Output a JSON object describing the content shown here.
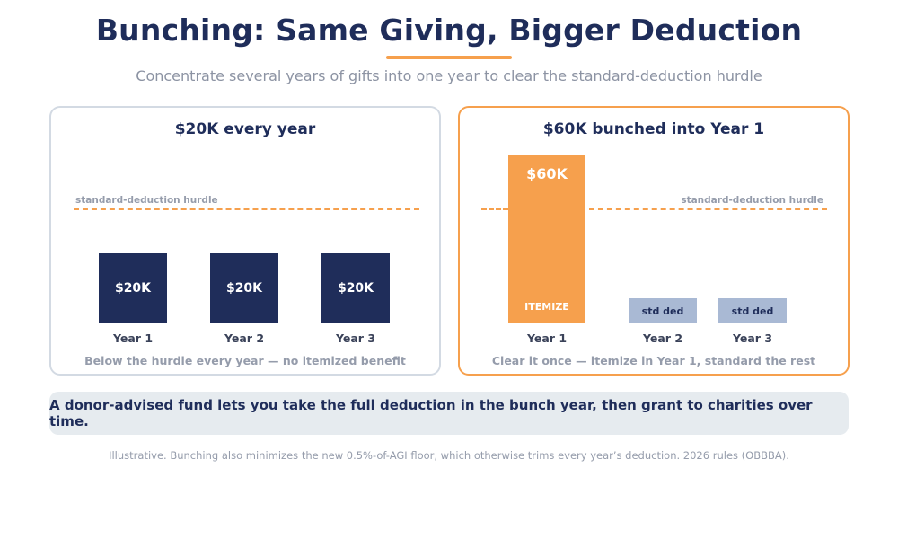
{
  "title": "Bunching: Same Giving, Bigger Deduction",
  "subtitle": "Concentrate several years of gifts into one year to clear the standard-deduction hurdle",
  "colors": {
    "navy": "#1f2d5a",
    "orange": "#f6a04d",
    "std_ded": "#a9b9d4",
    "muted_text": "#959cab",
    "banner_bg": "#e6ebef"
  },
  "panels": [
    {
      "title": "$20K every year",
      "hurdle_label": "standard-deduction hurdle",
      "bars": [
        {
          "year": "Year 1",
          "label": "$20K",
          "value": 20
        },
        {
          "year": "Year 2",
          "label": "$20K",
          "value": 20
        },
        {
          "year": "Year 3",
          "label": "$20K",
          "value": 20
        }
      ],
      "caption": "Below the hurdle every year — no itemized benefit"
    },
    {
      "title": "$60K bunched into Year 1",
      "hurdle_label": "standard-deduction hurdle",
      "bars": [
        {
          "year": "Year 1",
          "label": "$60K",
          "sublabel": "ITEMIZE",
          "value": 60
        },
        {
          "year": "Year 2",
          "label": "std ded"
        },
        {
          "year": "Year 3",
          "label": "std ded"
        }
      ],
      "caption": "Clear it once — itemize in Year 1, standard the rest"
    }
  ],
  "banner": "A donor-advised fund lets you take the full deduction in the bunch year, then grant to charities over time.",
  "footnote": "Illustrative. Bunching also minimizes the new 0.5%-of-AGI floor, which otherwise trims every year’s deduction. 2026 rules (OBBBA)."
}
